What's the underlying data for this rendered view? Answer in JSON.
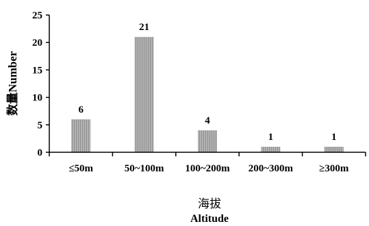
{
  "chart_data": {
    "type": "bar",
    "categories": [
      "≤50m",
      "50~100m",
      "100~200m",
      "200~300m",
      "≥300m"
    ],
    "values": [
      6,
      21,
      4,
      1,
      1
    ],
    "data_labels": [
      "6",
      "21",
      "4",
      "1",
      "1"
    ],
    "ylabel": "数量Number",
    "xlabel_zh": "海拔",
    "xlabel_en": "Altitude",
    "ylim": [
      0,
      25
    ],
    "yticks": [
      0,
      5,
      10,
      15,
      20,
      25
    ],
    "bar_color": "#a6a6a6",
    "grid": false
  }
}
